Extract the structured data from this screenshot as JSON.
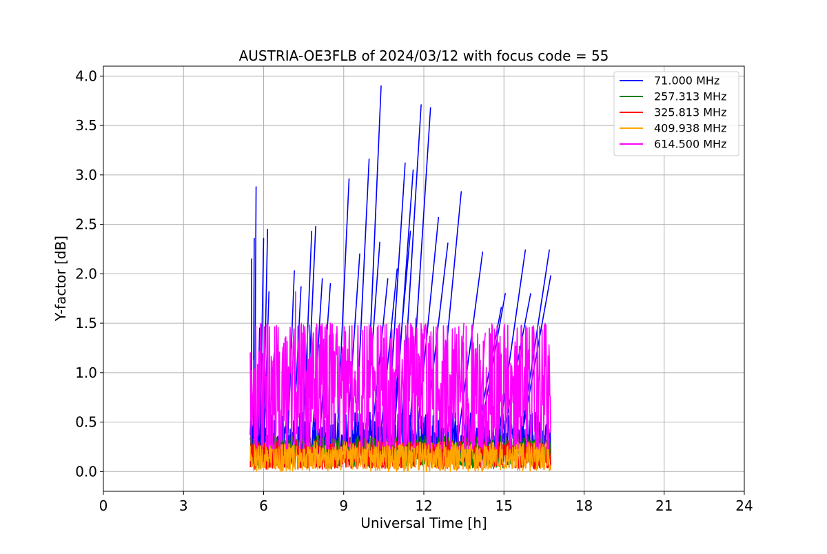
{
  "chart_data": {
    "type": "line",
    "title": "AUSTRIA-OE3FLB of 2024/03/12 with focus code = 55",
    "xlabel": "Universal Time [h]",
    "ylabel": "Y-factor [dB]",
    "xlim": [
      0,
      24
    ],
    "ylim": [
      -0.2,
      4.1
    ],
    "xticks": [
      0,
      3,
      6,
      9,
      12,
      15,
      18,
      21,
      24
    ],
    "yticks": [
      0.0,
      0.5,
      1.0,
      1.5,
      2.0,
      2.5,
      3.0,
      3.5,
      4.0
    ],
    "ytick_labels": [
      "0.0",
      "0.5",
      "1.0",
      "1.5",
      "2.0",
      "2.5",
      "3.0",
      "3.5",
      "4.0"
    ],
    "grid": true,
    "legend_position": "top-right",
    "time_range": [
      5.5,
      16.75
    ],
    "series": [
      {
        "name": "71.000 MHz",
        "label": "  71.000 MHz",
        "color": "#0000ff",
        "baseline": 0.3,
        "band": [
          0.2,
          0.6
        ],
        "spikes": [
          [
            5.55,
            2.15
          ],
          [
            5.65,
            2.36
          ],
          [
            5.72,
            2.88
          ],
          [
            5.85,
            1.45
          ],
          [
            6.0,
            2.36
          ],
          [
            6.15,
            2.45
          ],
          [
            6.2,
            1.82
          ],
          [
            6.4,
            1.2
          ],
          [
            7.15,
            2.03
          ],
          [
            7.4,
            1.87
          ],
          [
            7.8,
            2.43
          ],
          [
            7.95,
            2.48
          ],
          [
            8.2,
            1.95
          ],
          [
            8.5,
            1.9
          ],
          [
            9.2,
            2.96
          ],
          [
            9.6,
            2.2
          ],
          [
            9.95,
            3.16
          ],
          [
            10.35,
            2.32
          ],
          [
            10.4,
            3.9
          ],
          [
            10.65,
            1.95
          ],
          [
            11.0,
            2.05
          ],
          [
            11.3,
            3.12
          ],
          [
            11.5,
            2.43
          ],
          [
            11.6,
            3.05
          ],
          [
            11.9,
            3.71
          ],
          [
            12.25,
            3.68
          ],
          [
            12.55,
            2.57
          ],
          [
            12.9,
            2.31
          ],
          [
            13.4,
            2.83
          ],
          [
            14.2,
            2.22
          ],
          [
            14.9,
            1.66
          ],
          [
            15.05,
            1.8
          ],
          [
            15.8,
            2.24
          ],
          [
            16.0,
            1.8
          ],
          [
            16.7,
            2.24
          ],
          [
            16.75,
            1.98
          ]
        ]
      },
      {
        "name": "257.313 MHz",
        "label": "257.313 MHz",
        "color": "#008000",
        "baseline": 0.2,
        "band": [
          0.05,
          0.35
        ],
        "spikes": []
      },
      {
        "name": "325.813 MHz",
        "label": "325.813 MHz",
        "color": "#ff0000",
        "baseline": 0.17,
        "band": [
          0.03,
          0.3
        ],
        "spikes": []
      },
      {
        "name": "409.938 MHz",
        "label": "409.938 MHz",
        "color": "#ffa500",
        "baseline": 0.15,
        "band": [
          0.02,
          0.3
        ],
        "spikes": []
      },
      {
        "name": "614.500 MHz",
        "label": "614.500 MHz",
        "color": "#ff00ff",
        "baseline": 0.8,
        "band": [
          0.25,
          1.5
        ],
        "spikes": [
          [
            6.8,
            1.35
          ],
          [
            7.2,
            1.82
          ],
          [
            8.5,
            1.5
          ],
          [
            11.7,
            1.55
          ],
          [
            13.5,
            1.5
          ],
          [
            14.3,
            1.4
          ]
        ]
      }
    ]
  }
}
